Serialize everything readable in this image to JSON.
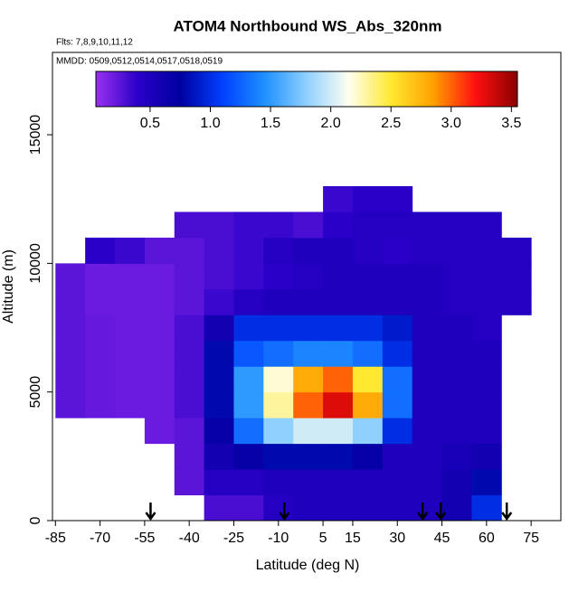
{
  "chart_data": {
    "type": "heatmap",
    "title": "ATOM4 Northbound WS_Abs_320nm",
    "subtitle": "Flts: 7,8,9,10,11,12",
    "annotation": "MMDD: 0509,0512,0514,0517,0518,0519",
    "x_label": "Latitude (deg N)",
    "y_label": "Altitude (m)",
    "xbins": [
      -85,
      -75,
      -65,
      -55,
      -45,
      -35,
      -25,
      -15,
      -5,
      5,
      15,
      25,
      35,
      45,
      55,
      65,
      75
    ],
    "ybins": [
      0,
      1000,
      2000,
      3000,
      4000,
      5000,
      6000,
      7000,
      8000,
      9000,
      10000,
      11000,
      12000,
      13000
    ],
    "z": [
      [
        null,
        null,
        null,
        null,
        null,
        0.3,
        0.3,
        0.45,
        0.5,
        0.5,
        0.5,
        0.5,
        0.5,
        0.6,
        1.0,
        null
      ],
      [
        null,
        null,
        null,
        null,
        0.25,
        0.45,
        0.45,
        0.5,
        0.5,
        0.5,
        0.5,
        0.5,
        0.5,
        0.6,
        0.8,
        null
      ],
      [
        null,
        null,
        null,
        null,
        0.25,
        0.6,
        0.7,
        0.8,
        0.8,
        0.8,
        0.7,
        0.5,
        0.5,
        0.55,
        0.6,
        null
      ],
      [
        null,
        null,
        null,
        0.2,
        0.25,
        0.7,
        1.3,
        1.8,
        2.0,
        2.0,
        1.8,
        1.0,
        0.5,
        0.5,
        0.5,
        null
      ],
      [
        0.25,
        0.22,
        0.2,
        0.2,
        0.3,
        0.8,
        1.5,
        2.3,
        3.0,
        3.3,
        2.8,
        1.3,
        0.5,
        0.5,
        0.5,
        null
      ],
      [
        0.25,
        0.22,
        0.2,
        0.2,
        0.3,
        0.8,
        1.5,
        2.2,
        2.8,
        3.0,
        2.5,
        1.3,
        0.5,
        0.5,
        0.5,
        null
      ],
      [
        0.25,
        0.22,
        0.2,
        0.2,
        0.3,
        0.8,
        1.2,
        1.3,
        1.4,
        1.4,
        1.3,
        1.0,
        0.5,
        0.5,
        0.5,
        null
      ],
      [
        0.25,
        0.22,
        0.2,
        0.2,
        0.3,
        0.6,
        1.0,
        1.0,
        1.0,
        1.0,
        1.0,
        0.9,
        0.5,
        0.5,
        0.45,
        null
      ],
      [
        0.25,
        0.2,
        0.2,
        0.2,
        0.25,
        0.35,
        0.45,
        0.5,
        0.5,
        0.5,
        0.5,
        0.5,
        0.5,
        0.45,
        0.45,
        0.45
      ],
      [
        0.25,
        0.2,
        0.2,
        0.2,
        0.25,
        0.3,
        0.35,
        0.4,
        0.45,
        0.5,
        0.5,
        0.5,
        0.5,
        0.45,
        0.45,
        0.45
      ],
      [
        null,
        0.4,
        0.35,
        0.25,
        0.25,
        0.3,
        0.35,
        0.45,
        0.5,
        0.5,
        0.45,
        0.4,
        0.45,
        0.45,
        0.45,
        0.45
      ],
      [
        null,
        null,
        null,
        null,
        0.3,
        0.3,
        0.35,
        0.35,
        0.3,
        0.4,
        0.45,
        0.45,
        0.45,
        0.45,
        0.45,
        null
      ],
      [
        null,
        null,
        null,
        null,
        null,
        null,
        null,
        null,
        null,
        0.35,
        0.4,
        0.4,
        null,
        null,
        null,
        null
      ]
    ],
    "xlim": [
      -86,
      85
    ],
    "xticks": [
      -85,
      -70,
      -55,
      -40,
      -25,
      -10,
      5,
      15,
      30,
      45,
      60,
      75
    ],
    "ylim": [
      0,
      18200
    ],
    "yticks": [
      0,
      5000,
      10000,
      15000
    ],
    "clim": [
      0.05,
      3.55
    ],
    "cticks": [
      0.5,
      {
        "value": 1,
        "label": "1.0"
      },
      1.5,
      {
        "value": 2,
        "label": "2.0"
      },
      2.5,
      {
        "value": 3,
        "label": "3.0"
      },
      3.5
    ],
    "colormap": [
      "#9a30f0",
      "#2a00c8",
      "#0000a0",
      "#0040ff",
      "#1e90ff",
      "#8fd0ff",
      "#fffff0",
      "#ffe830",
      "#ffa000",
      "#ff1010",
      "#8b0000"
    ],
    "arrows": [
      -53,
      -8,
      38.5,
      44.6,
      66.8
    ]
  }
}
